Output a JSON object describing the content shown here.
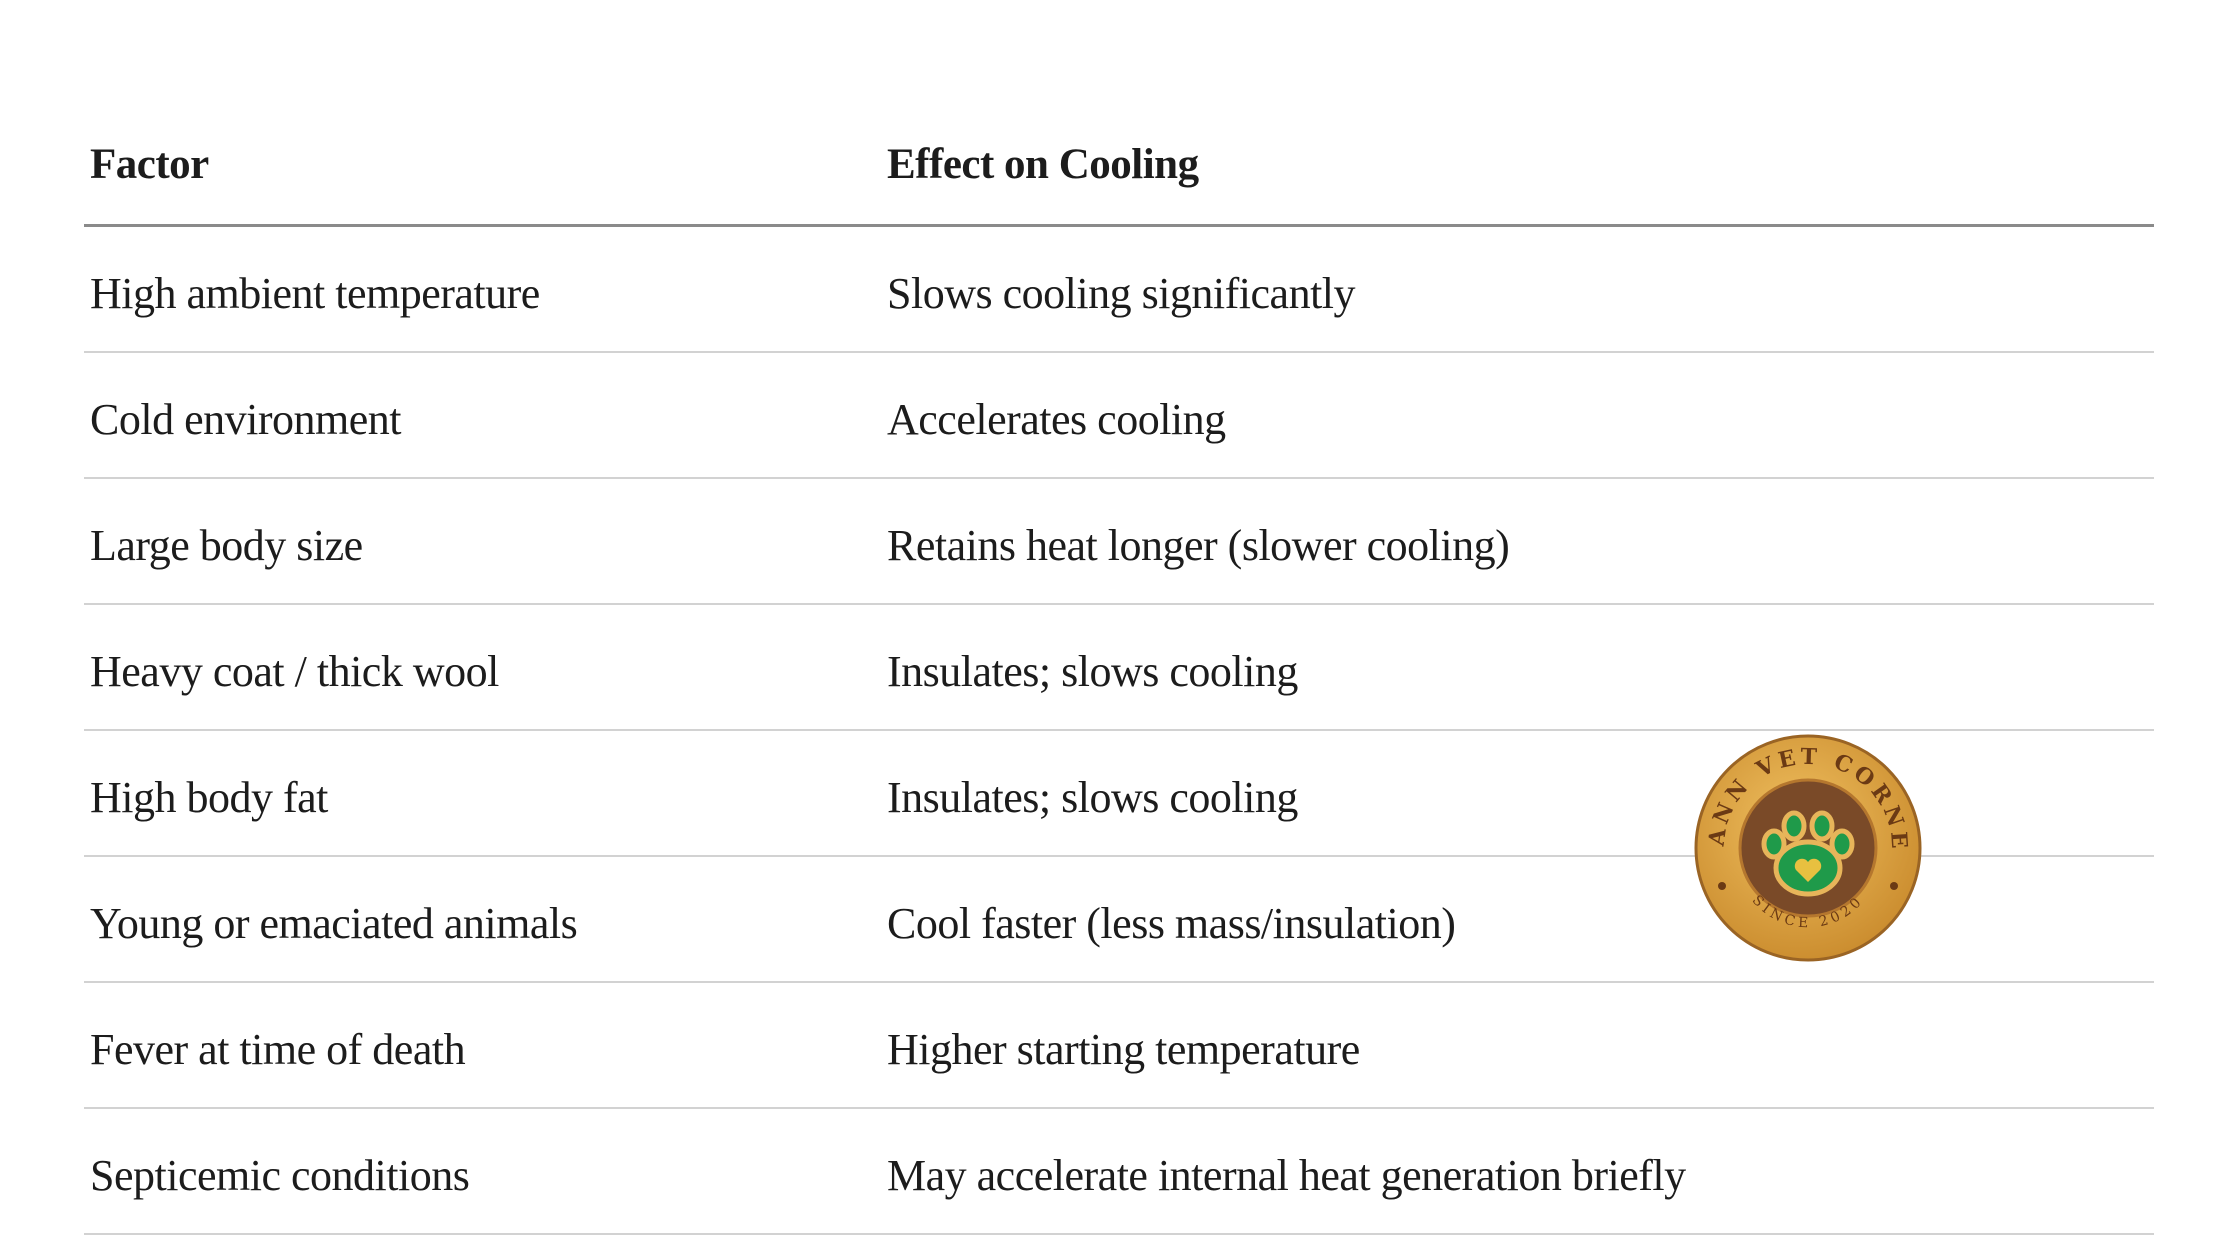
{
  "table": {
    "headers": [
      "Factor",
      "Effect on Cooling"
    ],
    "rows": [
      [
        "High ambient temperature",
        "Slows cooling significantly"
      ],
      [
        "Cold environment",
        "Accelerates cooling"
      ],
      [
        "Large body size",
        "Retains heat longer (slower cooling)"
      ],
      [
        "Heavy coat / thick wool",
        "Insulates; slows cooling"
      ],
      [
        "High body fat",
        "Insulates; slows cooling"
      ],
      [
        "Young or emaciated animals",
        "Cool faster (less mass/insulation)"
      ],
      [
        "Fever at time of death",
        "Higher starting temperature"
      ],
      [
        "Septicemic conditions",
        "May accelerate internal heat generation briefly"
      ]
    ]
  },
  "logo": {
    "name": "MANN VET CORNER",
    "since": "SINCE 2020",
    "colors": {
      "wood": "#d9a040",
      "inner": "#7a4a28",
      "paw": "#1f9a4a",
      "text": "#6b3a14"
    }
  }
}
